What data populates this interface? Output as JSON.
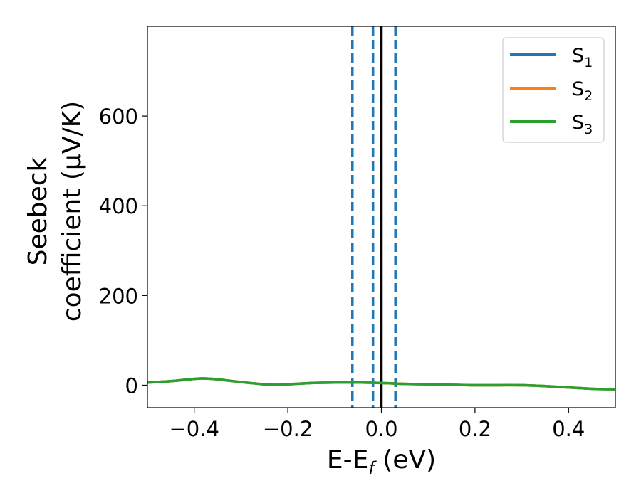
{
  "chart_data": {
    "type": "line",
    "xlabel": "E-E",
    "xlabel_sub": "f",
    "xlabel_suffix": " (eV)",
    "ylabel_line1": "Seebeck",
    "ylabel_line2": "coefficient  (μV/K)",
    "xlim": [
      -0.5,
      0.5
    ],
    "ylim": [
      -50,
      800
    ],
    "x_ticks": [
      -0.4,
      -0.2,
      0.0,
      0.2,
      0.4
    ],
    "x_tick_labels": [
      "−0.4",
      "−0.2",
      "0.0",
      "0.2",
      "0.4"
    ],
    "y_ticks": [
      0,
      200,
      400,
      600
    ],
    "y_tick_labels": [
      "0",
      "200",
      "400",
      "600"
    ],
    "grid": false,
    "legend_position": "top-right",
    "x": [
      -0.5,
      -0.45,
      -0.4,
      -0.38,
      -0.35,
      -0.3,
      -0.25,
      -0.22,
      -0.2,
      -0.15,
      -0.1,
      -0.05,
      0.0,
      0.05,
      0.1,
      0.15,
      0.2,
      0.25,
      0.3,
      0.35,
      0.4,
      0.45,
      0.5
    ],
    "series": [
      {
        "name": "S",
        "sub": "1",
        "color": "#1f77b4",
        "values": [
          6,
          9,
          14,
          15,
          13,
          7,
          2,
          1,
          2,
          5,
          6,
          6,
          5,
          3,
          2,
          1,
          0,
          0,
          0,
          -2,
          -5,
          -8,
          -9
        ]
      },
      {
        "name": "S",
        "sub": "2",
        "color": "#ff7f0e",
        "values": [
          6,
          9,
          14,
          15,
          13,
          7,
          2,
          1,
          2,
          5,
          6,
          6,
          5,
          3,
          2,
          1,
          0,
          0,
          0,
          -2,
          -5,
          -8,
          -9
        ]
      },
      {
        "name": "S",
        "sub": "3",
        "color": "#2ca02c",
        "values": [
          6,
          9,
          14,
          15,
          13,
          7,
          2,
          1,
          2,
          5,
          6,
          6,
          5,
          3,
          2,
          1,
          0,
          0,
          0,
          -2,
          -5,
          -8,
          -9
        ]
      }
    ],
    "vertical_lines": [
      {
        "x": -0.062,
        "style": "dashed",
        "color": "#1f77b4"
      },
      {
        "x": -0.018,
        "style": "dashed",
        "color": "#1f77b4"
      },
      {
        "x": 0.0,
        "style": "solid",
        "color": "#000000"
      },
      {
        "x": 0.03,
        "style": "dashed",
        "color": "#1f77b4"
      }
    ]
  }
}
